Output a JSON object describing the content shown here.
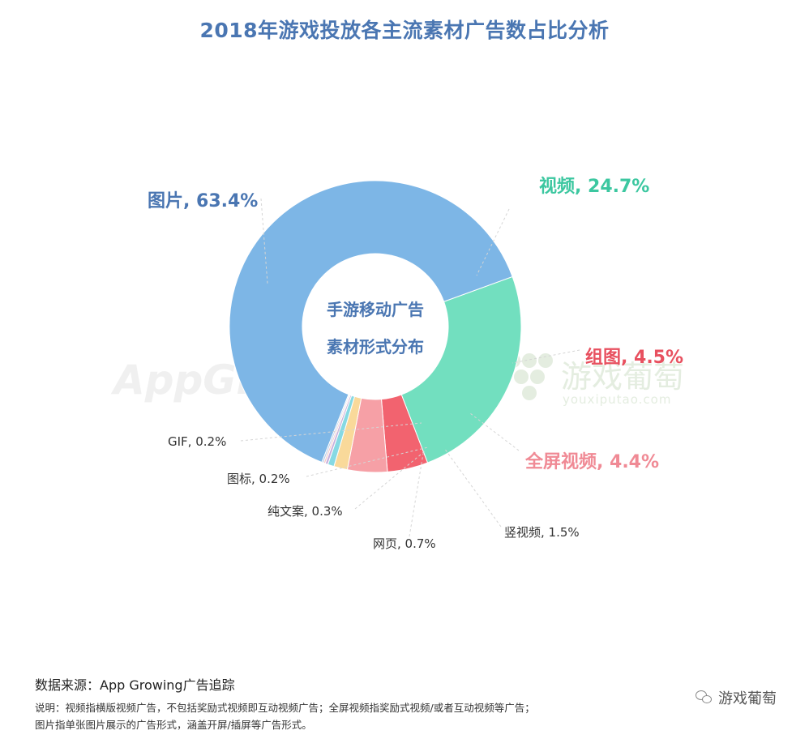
{
  "chart_data": {
    "type": "pie",
    "style": "donut",
    "title": "2018年游戏投放各主流素材广告数占比分析",
    "center_label": [
      "手游移动广告",
      "素材形式分布"
    ],
    "slices": [
      {
        "label": "视频",
        "value": 24.7,
        "display": "视频, 24.7%",
        "color": "#72dfbf"
      },
      {
        "label": "组图",
        "value": 4.5,
        "display": "组图, 4.5%",
        "color": "#f2636f"
      },
      {
        "label": "全屏视频",
        "value": 4.4,
        "display": "全屏视频, 4.4%",
        "color": "#f6a0a6"
      },
      {
        "label": "竖视频",
        "value": 1.5,
        "display": "竖视频, 1.5%",
        "color": "#f9d99a"
      },
      {
        "label": "网页",
        "value": 0.7,
        "display": "网页, 0.7%",
        "color": "#86d9e3"
      },
      {
        "label": "纯文案",
        "value": 0.3,
        "display": "纯文案, 0.3%",
        "color": "#c7b0dc"
      },
      {
        "label": "图标",
        "value": 0.2,
        "display": "图标, 0.2%",
        "color": "#f4c6c6"
      },
      {
        "label": "GIF",
        "value": 0.2,
        "display": "GIF, 0.2%",
        "color": "#b6cde8"
      },
      {
        "label": "图片",
        "value": 63.4,
        "display": "图片, 63.4%",
        "color": "#7db6e6"
      }
    ],
    "label_colors": {
      "图片": "#4a76b2",
      "视频": "#3cc7a0",
      "组图": "#e8505f",
      "全屏视频": "#f08a95",
      "other": "#333333"
    }
  },
  "watermarks": {
    "left": "AppGrowing",
    "right_cn": "游戏葡萄",
    "right_en": "youxiputao.com"
  },
  "footer": {
    "source": "数据来源：App Growing广告追踪",
    "note_1": "说明：视频指横版视频广告，不包括奖励式视频即互动视频广告；全屏视频指奖励式视频/或者互动视频等广告；",
    "note_2": "图片指单张图片展示的广告形式，涵盖开屏/插屏等广告形式。",
    "wechat_account": "游戏葡萄"
  }
}
